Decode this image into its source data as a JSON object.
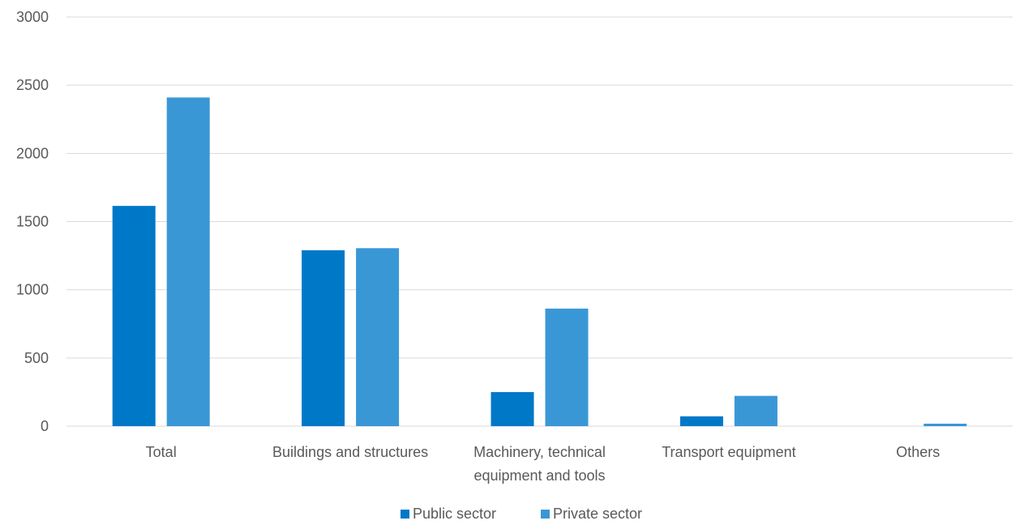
{
  "chart_data": {
    "type": "bar",
    "categories": [
      [
        "Total"
      ],
      [
        "Buildings and structures"
      ],
      [
        "Machinery, technical",
        "equipment and tools"
      ],
      [
        "Transport equipment"
      ],
      [
        "Others"
      ]
    ],
    "series": [
      {
        "name": "Public sector",
        "color": "#0078c8",
        "values": [
          1615,
          1290,
          250,
          72,
          0
        ]
      },
      {
        "name": "Private sector",
        "color": "#3a97d6",
        "values": [
          2410,
          1305,
          862,
          222,
          18
        ]
      }
    ],
    "yticks": [
      0,
      500,
      1000,
      1500,
      2000,
      2500,
      3000
    ],
    "ylim": [
      0,
      3000
    ],
    "grid": true,
    "legend_position": "bottom-center"
  }
}
